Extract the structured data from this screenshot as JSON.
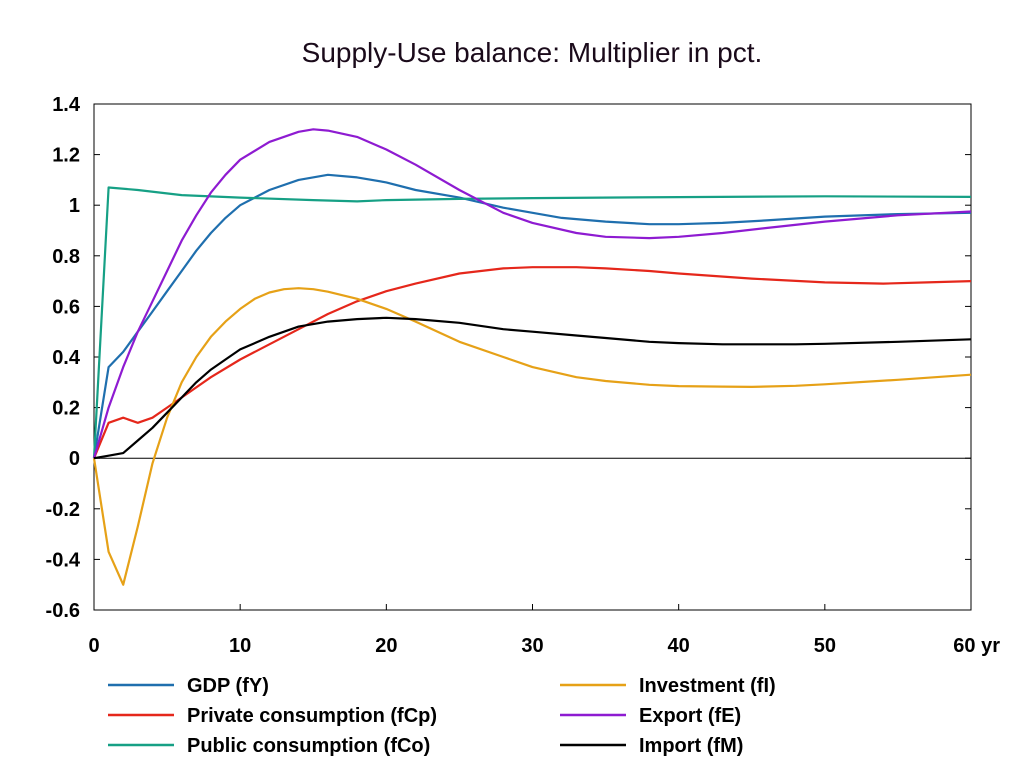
{
  "chart_data": {
    "type": "line",
    "title": "Supply-Use balance: Multiplier in pct.",
    "x_unit_label": "yr",
    "xlim": [
      0,
      60
    ],
    "ylim": [
      -0.6,
      1.4
    ],
    "x_ticks": [
      0,
      10,
      20,
      30,
      40,
      50,
      60
    ],
    "x_tick_labels": [
      "0",
      "10",
      "20",
      "30",
      "40",
      "50",
      "60 yr"
    ],
    "y_ticks": [
      -0.6,
      -0.4,
      -0.2,
      0,
      0.2,
      0.4,
      0.6,
      0.8,
      1,
      1.2,
      1.4
    ],
    "y_tick_labels": [
      "-0.6",
      "-0.4",
      "-0.2",
      "0",
      "0.2",
      "0.4",
      "0.6",
      "0.8",
      "1",
      "1.2",
      "1.4"
    ],
    "zero_line": true,
    "legend_position": "bottom",
    "series": [
      {
        "name": "GDP (fY)",
        "color": "#1f6fae",
        "points": [
          [
            0,
            0
          ],
          [
            1,
            0.36
          ],
          [
            2,
            0.42
          ],
          [
            3,
            0.5
          ],
          [
            4,
            0.58
          ],
          [
            5,
            0.66
          ],
          [
            6,
            0.74
          ],
          [
            7,
            0.82
          ],
          [
            8,
            0.89
          ],
          [
            9,
            0.95
          ],
          [
            10,
            1.0
          ],
          [
            12,
            1.06
          ],
          [
            14,
            1.1
          ],
          [
            16,
            1.12
          ],
          [
            18,
            1.11
          ],
          [
            20,
            1.09
          ],
          [
            22,
            1.06
          ],
          [
            25,
            1.03
          ],
          [
            28,
            0.99
          ],
          [
            30,
            0.97
          ],
          [
            32,
            0.95
          ],
          [
            35,
            0.935
          ],
          [
            38,
            0.925
          ],
          [
            40,
            0.925
          ],
          [
            43,
            0.93
          ],
          [
            46,
            0.94
          ],
          [
            50,
            0.955
          ],
          [
            55,
            0.965
          ],
          [
            60,
            0.97
          ]
        ]
      },
      {
        "name": "Private consumption (fCp)",
        "color": "#e5271b",
        "points": [
          [
            0,
            0
          ],
          [
            1,
            0.14
          ],
          [
            2,
            0.16
          ],
          [
            3,
            0.14
          ],
          [
            4,
            0.16
          ],
          [
            5,
            0.2
          ],
          [
            6,
            0.24
          ],
          [
            8,
            0.32
          ],
          [
            10,
            0.39
          ],
          [
            12,
            0.45
          ],
          [
            14,
            0.51
          ],
          [
            16,
            0.57
          ],
          [
            18,
            0.62
          ],
          [
            20,
            0.66
          ],
          [
            22,
            0.69
          ],
          [
            25,
            0.73
          ],
          [
            28,
            0.75
          ],
          [
            30,
            0.755
          ],
          [
            33,
            0.755
          ],
          [
            35,
            0.75
          ],
          [
            38,
            0.74
          ],
          [
            40,
            0.73
          ],
          [
            45,
            0.71
          ],
          [
            50,
            0.695
          ],
          [
            54,
            0.69
          ],
          [
            57,
            0.695
          ],
          [
            60,
            0.7
          ]
        ]
      },
      {
        "name": "Public consumption (fCo)",
        "color": "#16a085",
        "points": [
          [
            0,
            0
          ],
          [
            1,
            1.07
          ],
          [
            3,
            1.06
          ],
          [
            6,
            1.04
          ],
          [
            10,
            1.03
          ],
          [
            15,
            1.02
          ],
          [
            18,
            1.015
          ],
          [
            20,
            1.02
          ],
          [
            25,
            1.025
          ],
          [
            30,
            1.028
          ],
          [
            40,
            1.032
          ],
          [
            50,
            1.035
          ],
          [
            60,
            1.033
          ]
        ]
      },
      {
        "name": "Investment (fI)",
        "color": "#e6a117",
        "points": [
          [
            0,
            0
          ],
          [
            1,
            -0.37
          ],
          [
            2,
            -0.5
          ],
          [
            3,
            -0.27
          ],
          [
            4,
            -0.02
          ],
          [
            5,
            0.16
          ],
          [
            6,
            0.3
          ],
          [
            7,
            0.4
          ],
          [
            8,
            0.48
          ],
          [
            9,
            0.54
          ],
          [
            10,
            0.59
          ],
          [
            11,
            0.63
          ],
          [
            12,
            0.655
          ],
          [
            13,
            0.668
          ],
          [
            14,
            0.672
          ],
          [
            15,
            0.668
          ],
          [
            16,
            0.658
          ],
          [
            18,
            0.63
          ],
          [
            20,
            0.59
          ],
          [
            22,
            0.54
          ],
          [
            25,
            0.46
          ],
          [
            28,
            0.4
          ],
          [
            30,
            0.36
          ],
          [
            33,
            0.32
          ],
          [
            35,
            0.305
          ],
          [
            38,
            0.29
          ],
          [
            40,
            0.285
          ],
          [
            43,
            0.283
          ],
          [
            45,
            0.282
          ],
          [
            48,
            0.286
          ],
          [
            50,
            0.292
          ],
          [
            55,
            0.31
          ],
          [
            60,
            0.33
          ]
        ]
      },
      {
        "name": "Export (fE)",
        "color": "#8e1bd1",
        "points": [
          [
            0,
            0
          ],
          [
            1,
            0.2
          ],
          [
            2,
            0.36
          ],
          [
            3,
            0.5
          ],
          [
            4,
            0.62
          ],
          [
            5,
            0.74
          ],
          [
            6,
            0.86
          ],
          [
            7,
            0.96
          ],
          [
            8,
            1.05
          ],
          [
            9,
            1.12
          ],
          [
            10,
            1.18
          ],
          [
            12,
            1.25
          ],
          [
            14,
            1.29
          ],
          [
            15,
            1.3
          ],
          [
            16,
            1.295
          ],
          [
            18,
            1.27
          ],
          [
            20,
            1.22
          ],
          [
            22,
            1.16
          ],
          [
            25,
            1.06
          ],
          [
            28,
            0.97
          ],
          [
            30,
            0.93
          ],
          [
            33,
            0.89
          ],
          [
            35,
            0.875
          ],
          [
            38,
            0.87
          ],
          [
            40,
            0.875
          ],
          [
            43,
            0.89
          ],
          [
            46,
            0.91
          ],
          [
            50,
            0.935
          ],
          [
            55,
            0.96
          ],
          [
            60,
            0.975
          ]
        ]
      },
      {
        "name": "Import (fM)",
        "color": "#000000",
        "points": [
          [
            0,
            0
          ],
          [
            1,
            0.01
          ],
          [
            2,
            0.02
          ],
          [
            3,
            0.07
          ],
          [
            4,
            0.12
          ],
          [
            5,
            0.18
          ],
          [
            6,
            0.24
          ],
          [
            7,
            0.3
          ],
          [
            8,
            0.35
          ],
          [
            9,
            0.39
          ],
          [
            10,
            0.43
          ],
          [
            12,
            0.48
          ],
          [
            14,
            0.52
          ],
          [
            16,
            0.54
          ],
          [
            18,
            0.55
          ],
          [
            20,
            0.555
          ],
          [
            22,
            0.55
          ],
          [
            25,
            0.535
          ],
          [
            28,
            0.51
          ],
          [
            30,
            0.5
          ],
          [
            33,
            0.485
          ],
          [
            35,
            0.475
          ],
          [
            38,
            0.46
          ],
          [
            40,
            0.455
          ],
          [
            43,
            0.45
          ],
          [
            45,
            0.45
          ],
          [
            48,
            0.45
          ],
          [
            50,
            0.452
          ],
          [
            55,
            0.46
          ],
          [
            60,
            0.47
          ]
        ]
      }
    ]
  }
}
